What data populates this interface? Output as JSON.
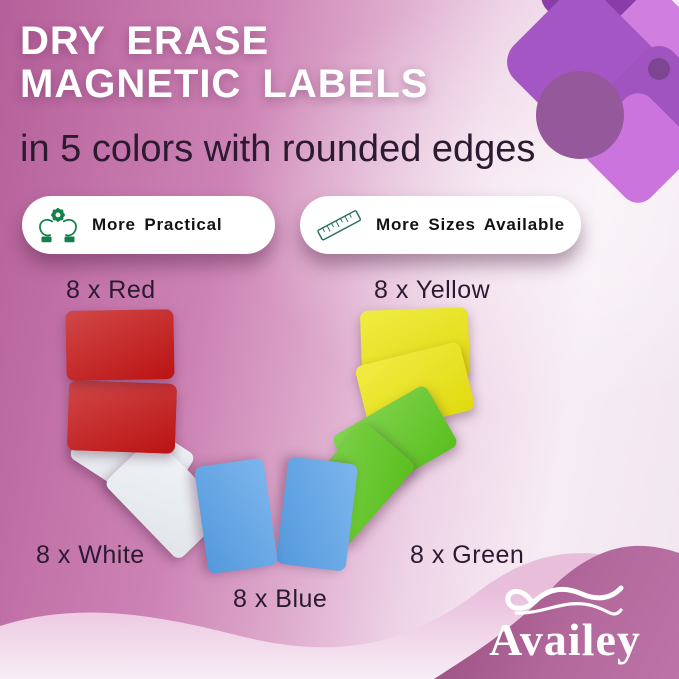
{
  "header": {
    "title_line1": "DRY ERASE",
    "title_line2": "MAGNETIC LABELS",
    "subtitle": "in 5 colors with rounded edges"
  },
  "features": [
    {
      "icon": "hands-gear-icon",
      "label": "More Practical"
    },
    {
      "icon": "ruler-icon",
      "label": "More Sizes Available"
    }
  ],
  "quantity_labels": {
    "red": "8 x Red",
    "yellow": "8 x Yellow",
    "white": "8 x White",
    "blue": "8 x Blue",
    "green": "8 x Green"
  },
  "card_fan": {
    "order": [
      "red",
      "red",
      "white",
      "white",
      "blue",
      "blue",
      "green",
      "green",
      "yellow",
      "yellow"
    ]
  },
  "brand": {
    "name": "Availey"
  },
  "colors": {
    "card-red": "#c41414",
    "card-yellow": "#ece60e",
    "card-white": "#edf1f6",
    "card-blue": "#58a1e8",
    "card-green": "#5fc920",
    "icon-green": "#14804a",
    "icon-teal": "#2c6e60",
    "text-dark": "#2c1a31",
    "text-white": "#ffffff",
    "bg-pink": "#c272a8",
    "wave-pink": "#e9bedb",
    "corner-mauve": "#a75c8d"
  }
}
